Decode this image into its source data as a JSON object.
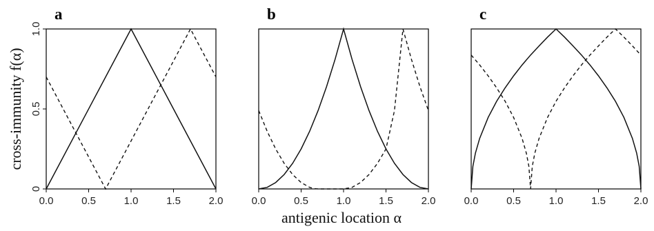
{
  "figure": {
    "ylabel": "cross-immunity f(α)",
    "xlabel": "antigenic location α"
  },
  "chart_data": [
    {
      "type": "line",
      "panel": "a",
      "title": "",
      "xlim": [
        0,
        2
      ],
      "ylim": [
        0,
        1
      ],
      "xticks": [
        "0.0",
        "0.5",
        "1.0",
        "1.5",
        "2.0"
      ],
      "yticks": [
        "0",
        "0.5",
        "1.0"
      ],
      "series": [
        {
          "style": "solid",
          "x": [
            0,
            1,
            2
          ],
          "y": [
            0,
            1,
            0
          ]
        },
        {
          "style": "dashed",
          "x": [
            0,
            0.7,
            1.7,
            2
          ],
          "y": [
            0.7,
            0,
            1,
            0.7
          ]
        }
      ]
    },
    {
      "type": "line",
      "panel": "b",
      "title": "",
      "xlim": [
        0,
        2
      ],
      "ylim": [
        0,
        1
      ],
      "xticks": [
        "0.0",
        "0.5",
        "1.0",
        "1.5",
        "2.0"
      ],
      "series": [
        {
          "style": "solid",
          "x": [
            0,
            0.1,
            0.2,
            0.3,
            0.4,
            0.5,
            0.6,
            0.7,
            0.8,
            0.9,
            1.0,
            1.1,
            1.2,
            1.3,
            1.4,
            1.5,
            1.6,
            1.7,
            1.8,
            1.9,
            2.0
          ],
          "y": [
            0,
            0.01,
            0.04,
            0.09,
            0.16,
            0.25,
            0.36,
            0.49,
            0.64,
            0.81,
            1,
            0.81,
            0.64,
            0.49,
            0.36,
            0.25,
            0.16,
            0.09,
            0.04,
            0.01,
            0
          ]
        },
        {
          "style": "dashed",
          "x": [
            0,
            0.1,
            0.2,
            0.3,
            0.4,
            0.5,
            0.6,
            0.65,
            0.7,
            0.75,
            0.8,
            0.9,
            1.0,
            1.1,
            1.2,
            1.3,
            1.4,
            1.5,
            1.6,
            1.7,
            1.8,
            1.9,
            2.0
          ],
          "y": [
            0.49,
            0.36,
            0.25,
            0.16,
            0.09,
            0.04,
            0.01,
            0.0025,
            0,
            0,
            0,
            0,
            0,
            0.01,
            0.04,
            0.09,
            0.16,
            0.25,
            0.49,
            1,
            0.81,
            0.64,
            0.49
          ]
        }
      ]
    },
    {
      "type": "line",
      "panel": "c",
      "title": "",
      "xlim": [
        0,
        2
      ],
      "ylim": [
        0,
        1
      ],
      "xticks": [
        "0.0",
        "0.5",
        "1.0",
        "1.5",
        "2.0"
      ],
      "series": [
        {
          "style": "solid",
          "x": [
            0,
            0.02,
            0.05,
            0.1,
            0.2,
            0.3,
            0.4,
            0.5,
            0.6,
            0.7,
            0.8,
            0.9,
            1.0,
            1.1,
            1.2,
            1.3,
            1.4,
            1.5,
            1.6,
            1.7,
            1.8,
            1.9,
            1.95,
            1.98,
            2.0
          ],
          "y": [
            0,
            0.141,
            0.224,
            0.316,
            0.447,
            0.548,
            0.632,
            0.707,
            0.775,
            0.837,
            0.894,
            0.949,
            1,
            0.949,
            0.894,
            0.837,
            0.775,
            0.707,
            0.632,
            0.548,
            0.447,
            0.316,
            0.224,
            0.141,
            0
          ]
        },
        {
          "style": "dashed",
          "x": [
            0,
            0.1,
            0.2,
            0.3,
            0.4,
            0.5,
            0.6,
            0.65,
            0.68,
            0.7,
            0.72,
            0.75,
            0.8,
            0.9,
            1.0,
            1.1,
            1.2,
            1.3,
            1.4,
            1.5,
            1.6,
            1.7,
            1.8,
            1.9,
            2.0
          ],
          "y": [
            0.837,
            0.775,
            0.707,
            0.632,
            0.548,
            0.447,
            0.316,
            0.224,
            0.141,
            0,
            0.141,
            0.224,
            0.316,
            0.447,
            0.548,
            0.632,
            0.707,
            0.775,
            0.837,
            0.894,
            0.949,
            1,
            0.949,
            0.894,
            0.837
          ]
        }
      ]
    }
  ]
}
